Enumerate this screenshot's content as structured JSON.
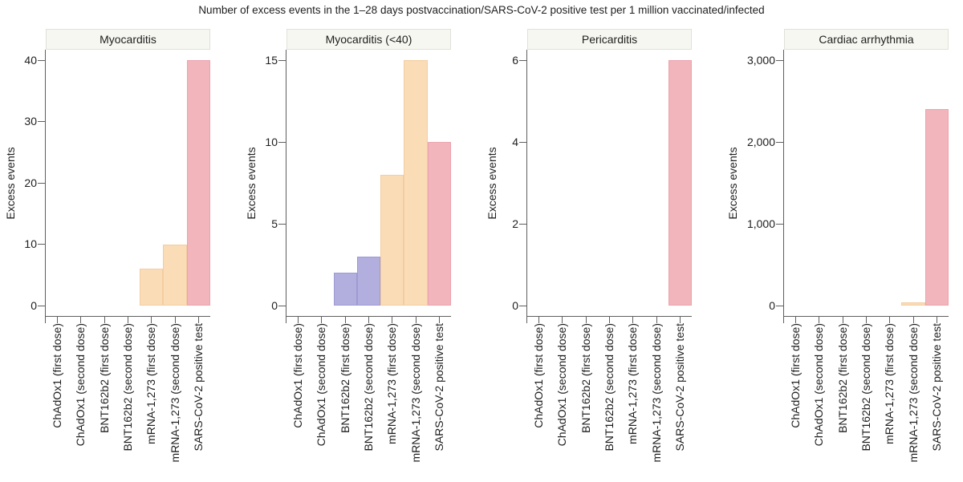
{
  "chart_data": {
    "type": "bar",
    "title": "Number of excess events in the 1–28 days postvaccination/SARS-CoV-2 positive test per 1 million vaccinated/infected",
    "ylabel": "Excess events",
    "grid": false,
    "legend": false,
    "categories": [
      "ChAdOx1 (first dose)",
      "ChAdOx1 (second dose)",
      "BNT162b2 (first dose)",
      "BNT162b2 (second dose)",
      "mRNA-1,273 (first dose)",
      "mRNA-1,273 (second dose)",
      "SARS-CoV-2 positive test"
    ],
    "category_groups": [
      "chadox1",
      "chadox1",
      "bnt162b2",
      "bnt162b2",
      "mrna1273",
      "mrna1273",
      "sars_cov_2"
    ],
    "panels": [
      {
        "title": "Myocarditis",
        "values": [
          0,
          0,
          0,
          0,
          6,
          10,
          40
        ],
        "ylim": [
          0,
          40
        ],
        "yticks": [
          0,
          10,
          20,
          30,
          40
        ],
        "ytick_labels": [
          "0",
          "10",
          "20",
          "30",
          "40"
        ]
      },
      {
        "title": "Myocarditis (<40)",
        "values": [
          0,
          0,
          2,
          3,
          8,
          15,
          10
        ],
        "ylim": [
          0,
          15
        ],
        "yticks": [
          0,
          5,
          10,
          15
        ],
        "ytick_labels": [
          "0",
          "5",
          "10",
          "15"
        ]
      },
      {
        "title": "Pericarditis",
        "values": [
          0,
          0,
          0,
          0,
          0,
          0,
          6
        ],
        "ylim": [
          0,
          6
        ],
        "yticks": [
          0,
          2,
          4,
          6
        ],
        "ytick_labels": [
          "0",
          "2",
          "4",
          "6"
        ]
      },
      {
        "title": "Cardiac arrhythmia",
        "values": [
          0,
          0,
          0,
          0,
          0,
          40,
          2400
        ],
        "ylim": [
          0,
          3000
        ],
        "yticks": [
          0,
          1000,
          2000,
          3000
        ],
        "ytick_labels": [
          "0",
          "1,000",
          "2,000",
          "3,000"
        ]
      }
    ]
  },
  "colors": {
    "bnt162b2": {
      "fill": "#b2afdf",
      "stroke": "#9e9ad3"
    },
    "mrna1273": {
      "fill": "#fadcb7",
      "stroke": "#f3cda1"
    },
    "sars_cov_2": {
      "fill": "#f2b5bc",
      "stroke": "#eca3ae"
    },
    "axis": "#5f5f5f",
    "text": "#1e1e1e",
    "strip_bg": "#f7f7f2",
    "strip_border": "#e1e1d9"
  }
}
